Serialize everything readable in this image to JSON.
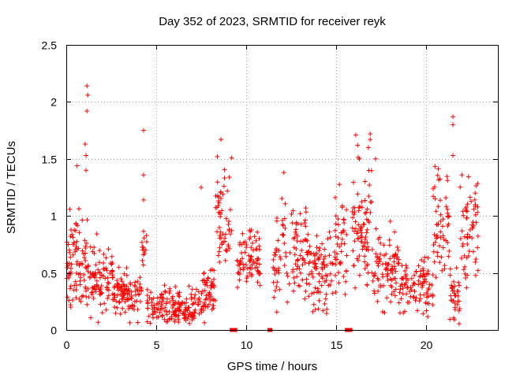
{
  "chart_data": {
    "type": "scatter",
    "title": "Day 352 of 2023, SRMTID for receiver reyk",
    "xlabel": "GPS time / hours",
    "ylabel": "SRMTID / TECUs",
    "xlim": [
      0,
      24
    ],
    "ylim": [
      0,
      2.5
    ],
    "xticks": [
      0,
      5,
      10,
      15,
      20
    ],
    "xtick_labels": [
      "0",
      "5",
      "10",
      "15",
      "20"
    ],
    "yticks": [
      0,
      0.5,
      1,
      1.5,
      2,
      2.5
    ],
    "ytick_labels": [
      "0",
      "0.5",
      "1",
      "1.5",
      "2",
      "2.5"
    ],
    "grid": true,
    "marker": "+",
    "color": "#ff0000",
    "series": [
      {
        "name": "SRMTID",
        "segments": [
          {
            "start": 0.0,
            "end": 1.2,
            "level": 0.6,
            "spread": 0.25,
            "count": 90
          },
          {
            "start": 1.2,
            "end": 2.6,
            "level": 0.45,
            "spread": 0.18,
            "count": 90
          },
          {
            "start": 2.6,
            "end": 4.2,
            "level": 0.3,
            "spread": 0.12,
            "count": 100
          },
          {
            "start": 4.2,
            "end": 4.5,
            "level": 0.8,
            "spread": 0.15,
            "count": 14
          },
          {
            "start": 4.5,
            "end": 7.5,
            "level": 0.2,
            "spread": 0.1,
            "count": 170
          },
          {
            "start": 7.5,
            "end": 8.3,
            "level": 0.3,
            "spread": 0.15,
            "count": 55
          },
          {
            "start": 8.3,
            "end": 9.2,
            "level": 0.95,
            "spread": 0.25,
            "count": 55
          },
          {
            "start": 9.5,
            "end": 10.8,
            "level": 0.6,
            "spread": 0.18,
            "count": 80
          },
          {
            "start": 11.5,
            "end": 13.5,
            "level": 0.7,
            "spread": 0.25,
            "count": 110
          },
          {
            "start": 13.5,
            "end": 14.9,
            "level": 0.5,
            "spread": 0.2,
            "count": 80
          },
          {
            "start": 14.9,
            "end": 15.6,
            "level": 0.75,
            "spread": 0.25,
            "count": 45
          },
          {
            "start": 15.9,
            "end": 17.0,
            "level": 0.85,
            "spread": 0.3,
            "count": 80
          },
          {
            "start": 17.0,
            "end": 18.5,
            "level": 0.55,
            "spread": 0.2,
            "count": 90
          },
          {
            "start": 18.5,
            "end": 20.4,
            "level": 0.4,
            "spread": 0.15,
            "count": 100
          },
          {
            "start": 20.4,
            "end": 21.3,
            "level": 0.9,
            "spread": 0.3,
            "count": 55
          },
          {
            "start": 21.3,
            "end": 21.9,
            "level": 0.3,
            "spread": 0.15,
            "count": 35
          },
          {
            "start": 21.9,
            "end": 22.9,
            "level": 0.85,
            "spread": 0.3,
            "count": 60
          }
        ],
        "outliers": [
          {
            "x": 1.15,
            "y": 2.14
          },
          {
            "x": 1.2,
            "y": 2.06
          },
          {
            "x": 1.15,
            "y": 1.92
          },
          {
            "x": 1.05,
            "y": 1.63
          },
          {
            "x": 1.1,
            "y": 1.53
          },
          {
            "x": 1.1,
            "y": 1.4
          },
          {
            "x": 0.6,
            "y": 1.44
          },
          {
            "x": 4.3,
            "y": 1.75
          },
          {
            "x": 4.3,
            "y": 1.36
          },
          {
            "x": 4.3,
            "y": 1.14
          },
          {
            "x": 8.6,
            "y": 1.67
          },
          {
            "x": 8.4,
            "y": 1.52
          },
          {
            "x": 9.2,
            "y": 1.51
          },
          {
            "x": 7.5,
            "y": 1.25
          },
          {
            "x": 16.1,
            "y": 1.71
          },
          {
            "x": 16.2,
            "y": 1.62
          },
          {
            "x": 16.9,
            "y": 1.72
          },
          {
            "x": 16.9,
            "y": 1.67
          },
          {
            "x": 16.8,
            "y": 1.6
          },
          {
            "x": 17.2,
            "y": 1.5
          },
          {
            "x": 16.3,
            "y": 1.5
          },
          {
            "x": 12.1,
            "y": 1.38
          },
          {
            "x": 21.5,
            "y": 1.87
          },
          {
            "x": 21.5,
            "y": 1.8
          },
          {
            "x": 21.5,
            "y": 1.53
          },
          {
            "x": 22.0,
            "y": 1.36
          },
          {
            "x": 21.2,
            "y": 1.31
          }
        ],
        "zero_markers": [
          {
            "x": 9.2,
            "y": 0
          },
          {
            "x": 9.3,
            "y": 0
          },
          {
            "x": 9.4,
            "y": 0
          },
          {
            "x": 11.3,
            "y": 0
          },
          {
            "x": 11.35,
            "y": 0
          },
          {
            "x": 15.6,
            "y": 0
          },
          {
            "x": 15.65,
            "y": 0
          },
          {
            "x": 15.7,
            "y": 0
          },
          {
            "x": 15.75,
            "y": 0
          },
          {
            "x": 15.8,
            "y": 0
          }
        ]
      }
    ]
  }
}
